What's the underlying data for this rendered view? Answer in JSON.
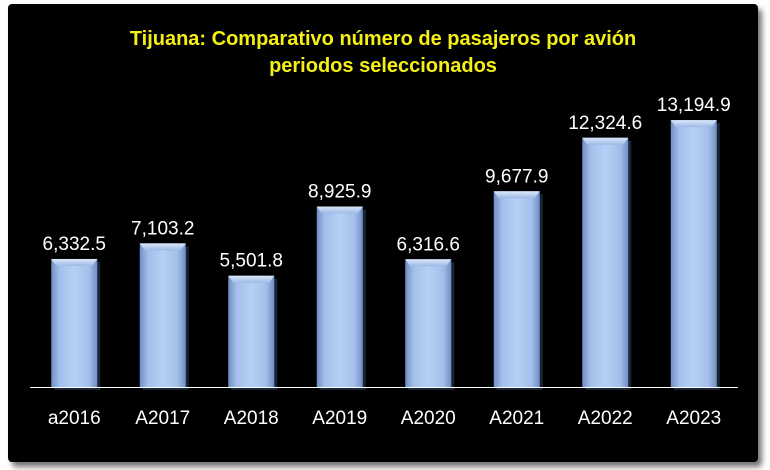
{
  "chart_data": {
    "type": "bar",
    "title": "Tijuana: Comparativo número de pasajeros por avión",
    "subtitle": "periodos seleccionados",
    "categories": [
      "a2016",
      "A2017",
      "A2018",
      "A2019",
      "A2020",
      "A2021",
      "A2022",
      "A2023"
    ],
    "values": [
      6332.5,
      7103.2,
      5501.8,
      8925.9,
      6316.6,
      9677.9,
      12324.6,
      13194.9
    ],
    "value_labels": [
      "6,332.5",
      "7,103.2",
      "5,501.8",
      "8,925.9",
      "6,316.6",
      "9,677.9",
      "12,324.6",
      "13,194.9"
    ],
    "ylim": [
      0,
      13500
    ],
    "grid": false,
    "legend": "none",
    "colors": {
      "background": "#000000",
      "title": "#f5ef14",
      "bar": "#a9c6f0",
      "text": "#ffffff",
      "axis": "#ffffff"
    }
  }
}
